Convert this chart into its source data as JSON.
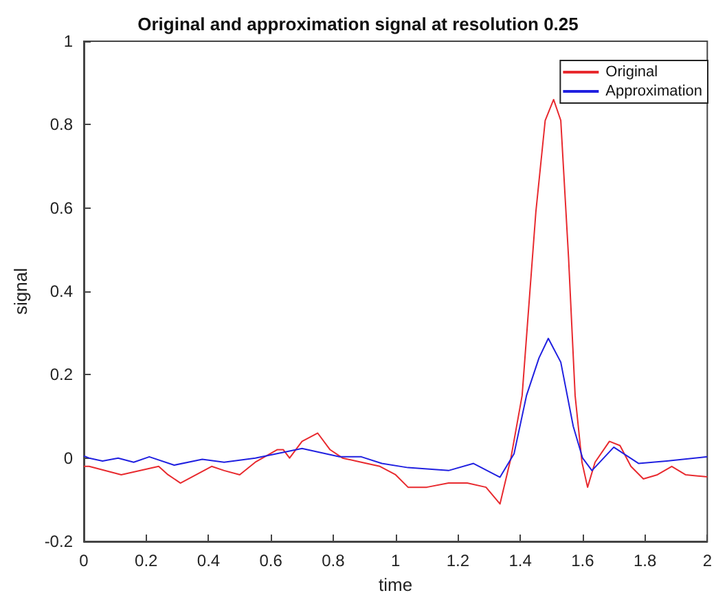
{
  "chart_data": {
    "type": "line",
    "title": "Original and approximation signal at resolution 0.25",
    "xlabel": "time",
    "ylabel": "signal",
    "xlim": [
      0,
      2
    ],
    "xticks": [
      0,
      0.2,
      0.4,
      0.6,
      0.8,
      1,
      1.2,
      1.4,
      1.6,
      1.8,
      2
    ],
    "ylim": [
      -0.2,
      1
    ],
    "yticks": [
      -0.2,
      0,
      0.2,
      0.4,
      0.6,
      0.8,
      1
    ],
    "grid": false,
    "legend": "top right",
    "marker": "none",
    "line_style": "solid",
    "series": [
      {
        "name": "Original",
        "color": "#e8292e",
        "x": [
          0,
          0.017,
          0.12,
          0.24,
          0.27,
          0.31,
          0.41,
          0.45,
          0.5,
          0.55,
          0.62,
          0.64,
          0.66,
          0.7,
          0.75,
          0.79,
          0.83,
          0.89,
          0.95,
          1.0,
          1.04,
          1.1,
          1.17,
          1.23,
          1.29,
          1.335,
          1.37,
          1.406,
          1.45,
          1.48,
          1.507,
          1.53,
          1.555,
          1.576,
          1.598,
          1.616,
          1.64,
          1.686,
          1.72,
          1.755,
          1.795,
          1.84,
          1.886,
          1.93,
          2
        ],
        "values": [
          -0.02,
          -0.02,
          -0.04,
          -0.02,
          -0.04,
          -0.06,
          -0.02,
          -0.03,
          -0.04,
          -0.01,
          0.02,
          0.02,
          0,
          0.04,
          0.06,
          0.02,
          0,
          -0.01,
          -0.02,
          -0.04,
          -0.07,
          -0.07,
          -0.06,
          -0.06,
          -0.07,
          -0.11,
          0,
          0.15,
          0.59,
          0.81,
          0.86,
          0.81,
          0.48,
          0.15,
          -0.01,
          -0.07,
          -0.01,
          0.04,
          0.03,
          -0.02,
          -0.05,
          -0.04,
          -0.02,
          -0.04,
          -0.045
        ]
      },
      {
        "name": "Approximation",
        "color": "#2020e0",
        "x": [
          0,
          0.017,
          0.06,
          0.11,
          0.16,
          0.21,
          0.29,
          0.38,
          0.45,
          0.55,
          0.7,
          0.82,
          0.89,
          0.956,
          1.04,
          1.17,
          1.25,
          1.335,
          1.38,
          1.42,
          1.46,
          1.49,
          1.53,
          1.57,
          1.6,
          1.63,
          1.7,
          1.78,
          1.87,
          2
        ],
        "values": [
          0.005,
          0,
          -0.007,
          0,
          -0.01,
          0.003,
          -0.017,
          -0.003,
          -0.01,
          0,
          0.023,
          0.003,
          0.003,
          -0.013,
          -0.023,
          -0.03,
          -0.013,
          -0.046,
          0.01,
          0.15,
          0.24,
          0.287,
          0.23,
          0.076,
          0,
          -0.03,
          0.026,
          -0.013,
          -0.007,
          0.003
        ]
      }
    ]
  }
}
